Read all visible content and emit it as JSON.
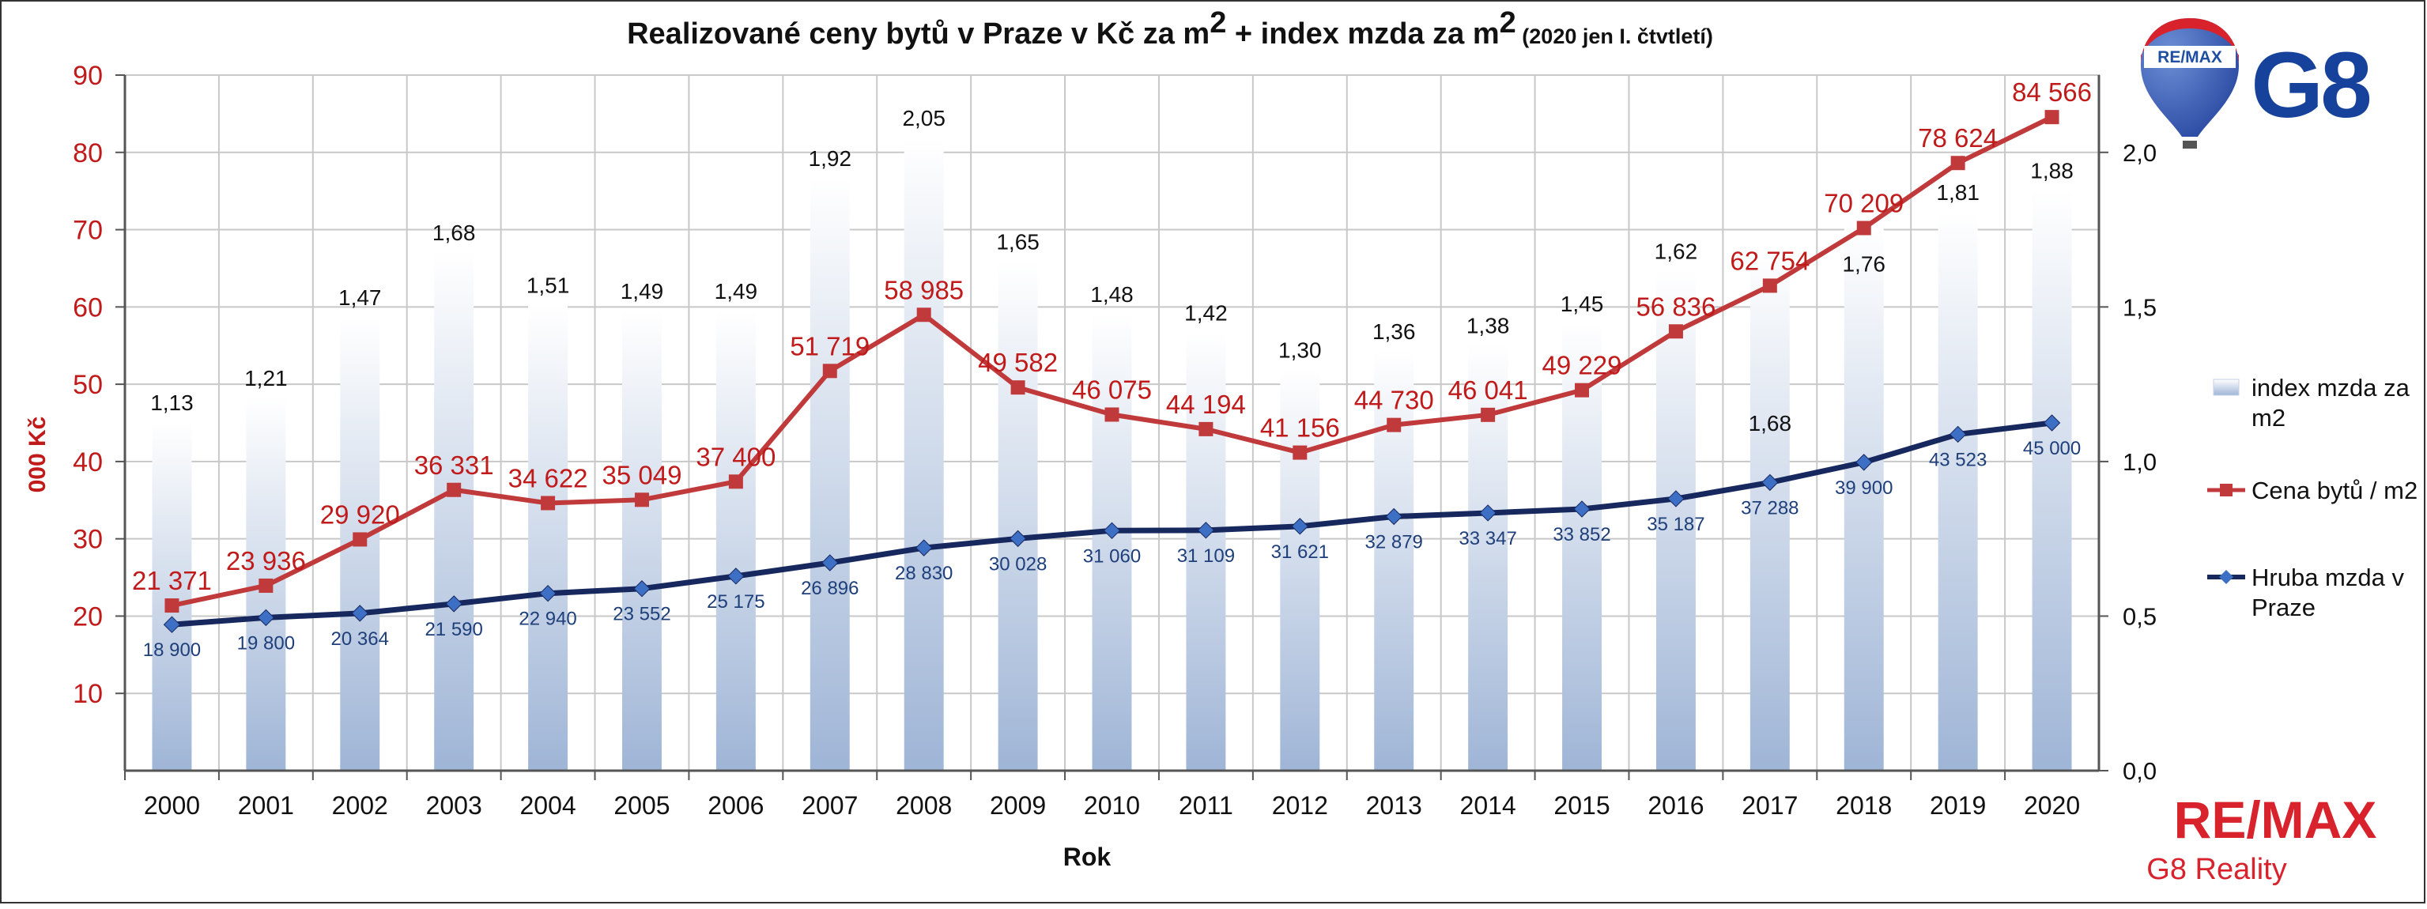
{
  "colors": {
    "bar_top": "#ffffff",
    "bar_bottom": "#9fb5d6",
    "price_line": "#c0393b",
    "price_label": "#c01a1a",
    "wage_line": "#17285e",
    "wage_label": "#1f3f7a",
    "axis_left": "#c01a1a",
    "remax_red": "#d8222c",
    "remax_blue": "#1f4fa0",
    "g8_blue": "#17429b"
  },
  "chart_data": {
    "type": "bar+line",
    "title": {
      "part1": "Realizované ceny bytů v Praze v Kč za m",
      "sup1": "2",
      "part2": " + index mzda za m",
      "sup2": "2",
      "note": " (2020 jen I. čtvtletí)"
    },
    "xlabel": "Rok",
    "ylabel_left": "000 Kč",
    "ylabel_right": "",
    "categories": [
      "2000",
      "2001",
      "2002",
      "2003",
      "2004",
      "2005",
      "2006",
      "2007",
      "2008",
      "2009",
      "2010",
      "2011",
      "2012",
      "2013",
      "2014",
      "2015",
      "2016",
      "2017",
      "2018",
      "2019",
      "2020"
    ],
    "y_left": {
      "min": 0,
      "max": 90,
      "ticks": [
        10,
        20,
        30,
        40,
        50,
        60,
        70,
        80,
        90
      ]
    },
    "y_right": {
      "min": 0,
      "max": 2.25,
      "ticks": [
        "0,0",
        "0,5",
        "1,0",
        "1,5",
        "2,0"
      ],
      "tick_values": [
        0,
        0.5,
        1.0,
        1.5,
        2.0
      ]
    },
    "grid": true,
    "legend_position": "right",
    "series": [
      {
        "name": "index mzda za m2",
        "kind": "bar",
        "axis": "right",
        "values": [
          1.13,
          1.21,
          1.47,
          1.68,
          1.51,
          1.49,
          1.49,
          1.92,
          2.05,
          1.65,
          1.48,
          1.42,
          1.3,
          1.36,
          1.38,
          1.45,
          1.62,
          1.68,
          1.76,
          1.81,
          1.88
        ],
        "labels": [
          "1,13",
          "1,21",
          "1,47",
          "1,68",
          "1,51",
          "1,49",
          "1,49",
          "1,92",
          "2,05",
          "1,65",
          "1,48",
          "1,42",
          "1,30",
          "1,36",
          "1,38",
          "1,45",
          "1,62",
          "1,68",
          "1,76",
          "1,81",
          "1,88"
        ]
      },
      {
        "name": "Cena bytů / m2",
        "kind": "line",
        "axis": "left",
        "values": [
          21371,
          23936,
          29920,
          36331,
          34622,
          35049,
          37400,
          51719,
          58985,
          49582,
          46075,
          44194,
          41156,
          44730,
          46041,
          49229,
          56836,
          62754,
          70209,
          78624,
          84566
        ],
        "labels": [
          "21 371",
          "23 936",
          "29 920",
          "36 331",
          "34 622",
          "35 049",
          "37 400",
          "51 719",
          "58 985",
          "49 582",
          "46 075",
          "44 194",
          "41 156",
          "44 730",
          "46 041",
          "49 229",
          "56 836",
          "62 754",
          "70 209",
          "78 624",
          "84 566"
        ]
      },
      {
        "name": "Hruba mzda v Praze",
        "kind": "line",
        "axis": "left",
        "values": [
          18900,
          19800,
          20364,
          21590,
          22940,
          23552,
          25175,
          26896,
          28830,
          30028,
          31060,
          31109,
          31621,
          32879,
          33347,
          33852,
          35187,
          37288,
          39900,
          43523,
          45000
        ],
        "labels": [
          "18 900",
          "19 800",
          "20 364",
          "21 590",
          "22 940",
          "23 552",
          "25 175",
          "26 896",
          "28 830",
          "30 028",
          "31 060",
          "31 109",
          "31 621",
          "32 879",
          "33 347",
          "33 852",
          "35 187",
          "37 288",
          "39 900",
          "43 523",
          "45 000"
        ]
      }
    ],
    "legend": [
      {
        "lines": [
          "index mzda za",
          "m2"
        ]
      },
      {
        "lines": [
          "Cena bytů / m2"
        ]
      },
      {
        "lines": [
          "Hruba mzda v",
          "Praze"
        ]
      }
    ]
  },
  "branding": {
    "balloon_text": "RE/MAX",
    "g8_text": "G8",
    "remax_wordmark": "RE/MAX",
    "reality_text": "G8 Reality"
  }
}
